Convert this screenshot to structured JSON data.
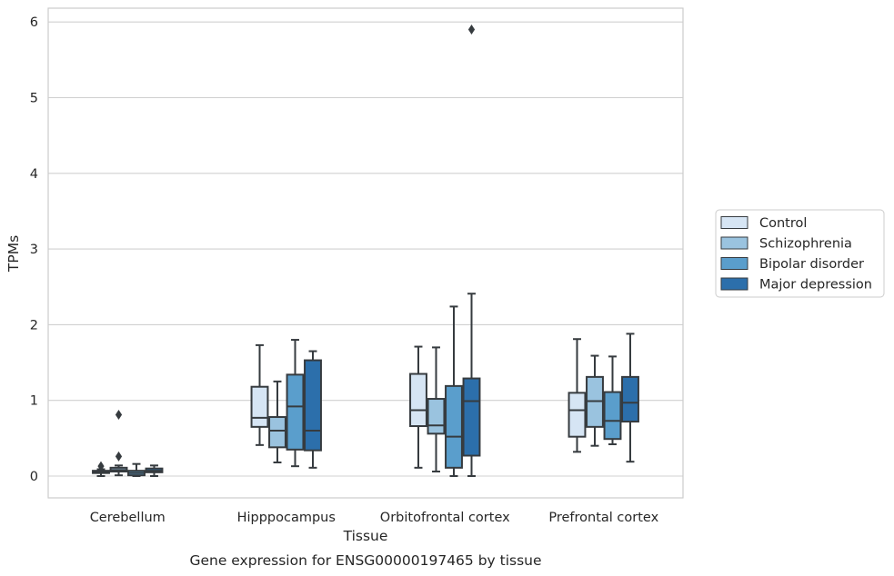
{
  "chart_data": {
    "type": "box",
    "xlabel": "Tissue",
    "ylabel": "TPMs",
    "caption": "Gene expression for ENSG00000197465 by tissue",
    "ylim": [
      -0.3,
      6.2
    ],
    "yticks": [
      0,
      1,
      2,
      3,
      4,
      5,
      6
    ],
    "grid": true,
    "legend_position": "right",
    "categories": [
      "Cerebellum",
      "Hipppocampus",
      "Orbitofrontal cortex",
      "Prefrontal cortex"
    ],
    "series": [
      {
        "name": "Control",
        "color": "#d6e5f4",
        "boxes": [
          {
            "whisker_low": 0.0,
            "q1": 0.04,
            "median": 0.05,
            "q3": 0.07,
            "whisker_high": 0.09,
            "outliers": [
              0.13
            ]
          },
          {
            "whisker_low": 0.41,
            "q1": 0.65,
            "median": 0.77,
            "q3": 1.18,
            "whisker_high": 1.73,
            "outliers": []
          },
          {
            "whisker_low": 0.11,
            "q1": 0.66,
            "median": 0.87,
            "q3": 1.35,
            "whisker_high": 1.71,
            "outliers": []
          },
          {
            "whisker_low": 0.32,
            "q1": 0.52,
            "median": 0.87,
            "q3": 1.1,
            "whisker_high": 1.81,
            "outliers": []
          }
        ]
      },
      {
        "name": "Schizophrenia",
        "color": "#9ac3df",
        "boxes": [
          {
            "whisker_low": 0.01,
            "q1": 0.06,
            "median": 0.08,
            "q3": 0.11,
            "whisker_high": 0.14,
            "outliers": [
              0.26,
              0.81
            ]
          },
          {
            "whisker_low": 0.18,
            "q1": 0.38,
            "median": 0.6,
            "q3": 0.78,
            "whisker_high": 1.25,
            "outliers": []
          },
          {
            "whisker_low": 0.06,
            "q1": 0.56,
            "median": 0.67,
            "q3": 1.02,
            "whisker_high": 1.7,
            "outliers": []
          },
          {
            "whisker_low": 0.4,
            "q1": 0.65,
            "median": 0.99,
            "q3": 1.31,
            "whisker_high": 1.59,
            "outliers": []
          }
        ]
      },
      {
        "name": "Bipolar disorder",
        "color": "#5a9ecc",
        "boxes": [
          {
            "whisker_low": 0.0,
            "q1": 0.01,
            "median": 0.04,
            "q3": 0.07,
            "whisker_high": 0.16,
            "outliers": []
          },
          {
            "whisker_low": 0.13,
            "q1": 0.35,
            "median": 0.92,
            "q3": 1.34,
            "whisker_high": 1.8,
            "outliers": []
          },
          {
            "whisker_low": 0.0,
            "q1": 0.11,
            "median": 0.52,
            "q3": 1.19,
            "whisker_high": 2.24,
            "outliers": []
          },
          {
            "whisker_low": 0.42,
            "q1": 0.49,
            "median": 0.73,
            "q3": 1.11,
            "whisker_high": 1.58,
            "outliers": []
          }
        ]
      },
      {
        "name": "Major depression",
        "color": "#2c6fab",
        "boxes": [
          {
            "whisker_low": 0.0,
            "q1": 0.05,
            "median": 0.07,
            "q3": 0.1,
            "whisker_high": 0.14,
            "outliers": []
          },
          {
            "whisker_low": 0.11,
            "q1": 0.34,
            "median": 0.6,
            "q3": 1.53,
            "whisker_high": 1.65,
            "outliers": []
          },
          {
            "whisker_low": 0.0,
            "q1": 0.27,
            "median": 0.99,
            "q3": 1.29,
            "whisker_high": 2.41,
            "outliers": [
              5.9
            ]
          },
          {
            "whisker_low": 0.19,
            "q1": 0.72,
            "median": 0.97,
            "q3": 1.31,
            "whisker_high": 1.88,
            "outliers": []
          }
        ]
      }
    ]
  }
}
